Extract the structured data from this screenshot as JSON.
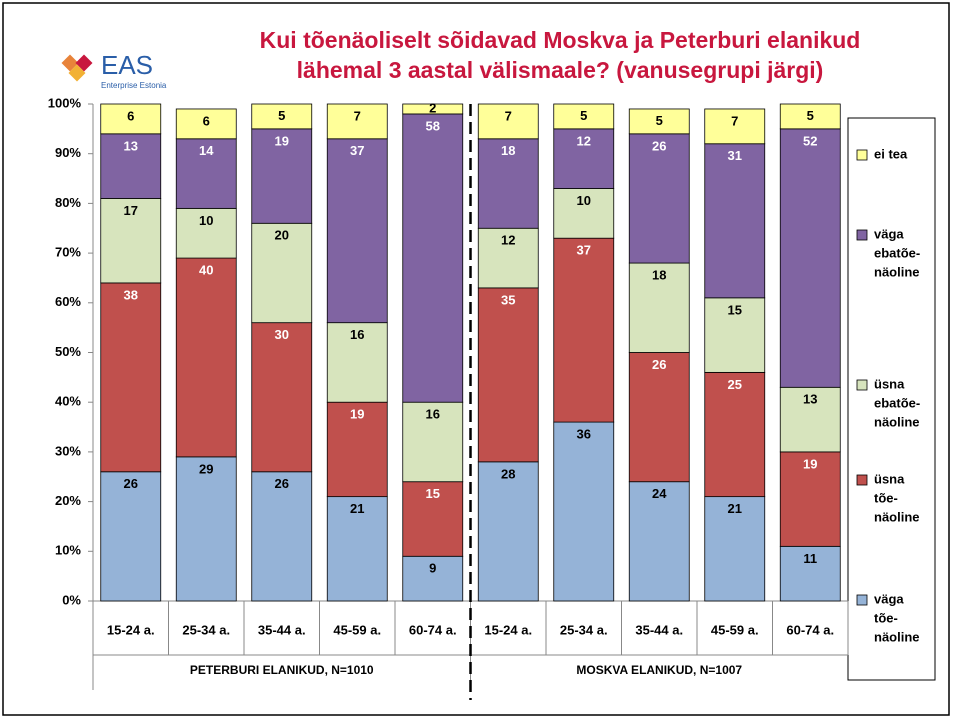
{
  "logo": {
    "text": "EAS",
    "subtitle": "Enterprise Estonia"
  },
  "chart_data": {
    "type": "stacked-bar",
    "title": [
      "Kui tõenäoliselt sõidavad Moskva ja Peterburi elanikud",
      "lähemal 3 aastal välismaale? (vanusegrupi järgi)"
    ],
    "categories": [
      "15-24 a.",
      "25-34 a.",
      "35-44 a.",
      "45-59 a.",
      "60-74 a.",
      "15-24 a.",
      "25-34 a.",
      "35-44 a.",
      "45-59 a.",
      "60-74 a."
    ],
    "groups": [
      {
        "label": "PETERBURI ELANIKUD, N=1010",
        "size": 5
      },
      {
        "label": "MOSKVA ELANIKUD, N=1007",
        "size": 5
      }
    ],
    "ylim": [
      0,
      100
    ],
    "yticks": [
      {
        "value": 0,
        "label": "0%"
      },
      {
        "value": 10,
        "label": "10%"
      },
      {
        "value": 20,
        "label": "20%"
      },
      {
        "value": 30,
        "label": "30%"
      },
      {
        "value": 40,
        "label": "40%"
      },
      {
        "value": 50,
        "label": "50%"
      },
      {
        "value": 60,
        "label": "60%"
      },
      {
        "value": 70,
        "label": "70%"
      },
      {
        "value": 80,
        "label": "80%"
      },
      {
        "value": 90,
        "label": "90%"
      },
      {
        "value": 100,
        "label": "100%"
      }
    ],
    "series": [
      {
        "name": [
          "väga",
          "tõe-",
          "näoline"
        ],
        "color": "#95b3d7",
        "label_color": "#000",
        "values": [
          26,
          29,
          26,
          21,
          9,
          28,
          36,
          24,
          21,
          11
        ]
      },
      {
        "name": [
          "üsna",
          "tõe-",
          "näoline"
        ],
        "color": "#c0504d",
        "label_color": "#fff",
        "values": [
          38,
          40,
          30,
          19,
          15,
          35,
          37,
          26,
          25,
          19
        ]
      },
      {
        "name": [
          "üsna",
          "ebatõe-",
          "näoline"
        ],
        "color": "#d7e4bd",
        "label_color": "#000",
        "values": [
          17,
          10,
          20,
          16,
          16,
          12,
          10,
          18,
          15,
          13
        ]
      },
      {
        "name": [
          "väga",
          "ebatõe-",
          "näoline"
        ],
        "color": "#8064a2",
        "label_color": "#fff",
        "values": [
          13,
          14,
          19,
          37,
          58,
          18,
          12,
          26,
          31,
          52
        ]
      },
      {
        "name": [
          "ei tea"
        ],
        "color": "#ffff99",
        "label_color": "#000",
        "values": [
          6,
          6,
          5,
          7,
          2,
          7,
          5,
          5,
          7,
          5
        ]
      }
    ],
    "legend": "right"
  }
}
